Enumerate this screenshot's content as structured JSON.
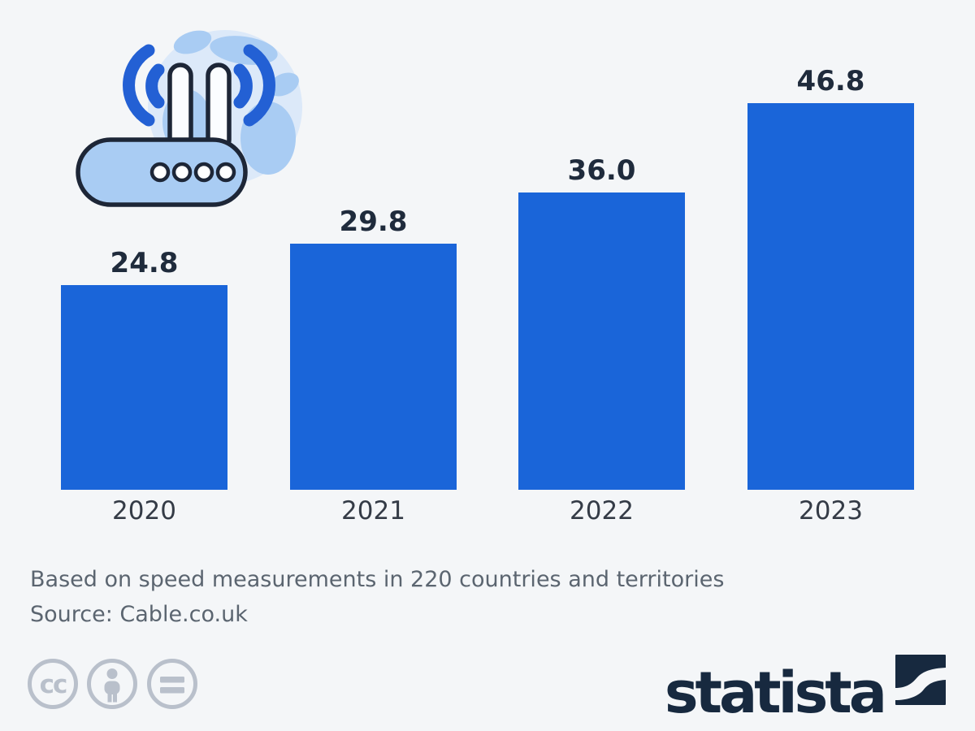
{
  "chart_data": {
    "type": "bar",
    "title": "",
    "categories": [
      "2020",
      "2021",
      "2022",
      "2023"
    ],
    "values": [
      24.8,
      29.8,
      36.0,
      46.8
    ],
    "value_labels": [
      "24.8",
      "29.8",
      "36.0",
      "46.8"
    ],
    "xlabel": "",
    "ylabel": "",
    "ylim": [
      0,
      50
    ],
    "axes_visible": false,
    "grid": false,
    "legend": "none",
    "data_labels": true
  },
  "footer": {
    "note": "Based on speed measurements in 220 countries and territories",
    "source": "Source: Cable.co.uk"
  },
  "branding": {
    "logo_text": "statista",
    "logo_mark": "statista-swoosh-square-icon",
    "license_icons": [
      "cc-icon",
      "attribution-person-icon",
      "no-derivatives-equals-icon"
    ]
  },
  "decor": {
    "hero_icon": "wifi-router-globe-icon"
  },
  "colors": {
    "background": "#f4f6f8",
    "bar": "#1a65d9",
    "value": "#1f2b3c",
    "category": "#343b46",
    "footer": "#5b6570",
    "brand": "#17293f",
    "license": "#b9c0cb",
    "iconLight": "#a9ccf3",
    "iconPale": "#dce9f9",
    "iconWave": "#2360d4",
    "iconOutline": "#1d2637"
  }
}
